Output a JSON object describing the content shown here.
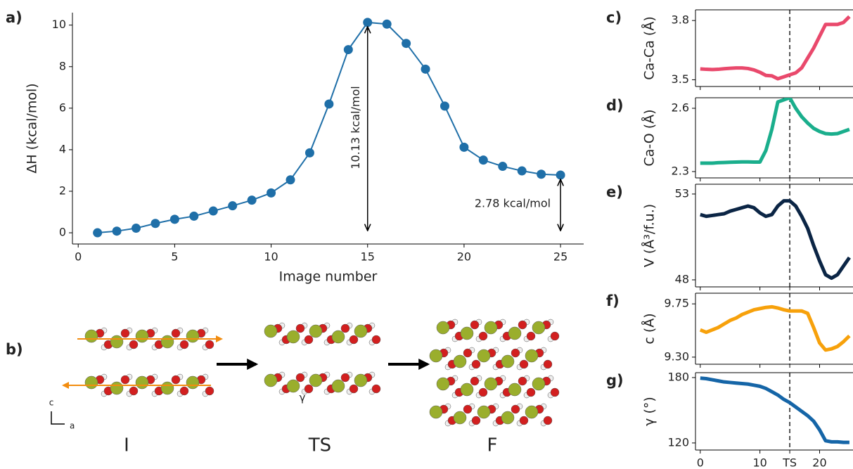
{
  "chart_data": [
    {
      "type": "line",
      "title": "a)",
      "xlabel": "Image number",
      "ylabel": "ΔH (kcal/mol)",
      "x": [
        1,
        2,
        3,
        4,
        5,
        6,
        7,
        8,
        9,
        10,
        11,
        12,
        13,
        14,
        15,
        16,
        17,
        18,
        19,
        20,
        21,
        22,
        23,
        24,
        25
      ],
      "series": [
        {
          "color": "#1f6fa8",
          "values": [
            0,
            0.08,
            0.22,
            0.45,
            0.65,
            0.8,
            1.05,
            1.3,
            1.57,
            1.92,
            2.55,
            3.85,
            6.2,
            8.82,
            10.13,
            10.05,
            9.12,
            7.88,
            6.1,
            4.12,
            3.5,
            3.2,
            2.98,
            2.82,
            2.78
          ]
        }
      ],
      "markers": true,
      "xlim": [
        -0.3,
        26.2
      ],
      "ylim": [
        -0.54,
        10.6
      ],
      "xticks": [
        0,
        5,
        10,
        15,
        20,
        25
      ],
      "yticks": [
        0,
        2,
        4,
        6,
        8,
        10
      ],
      "annotations": [
        {
          "text": "10.13 kcal/mol",
          "x": 15,
          "y0": 0,
          "y1": 10.13
        },
        {
          "text": "2.78 kcal/mol",
          "x": 25,
          "y0": 0,
          "y1": 2.78
        }
      ]
    },
    {
      "type": "line",
      "title": "c)",
      "ylabel": "Ca-Ca (Å)",
      "x": [
        0,
        1,
        2,
        3,
        4,
        5,
        6,
        7,
        8,
        9,
        10,
        11,
        12,
        13,
        14,
        15,
        16,
        17,
        18,
        19,
        20,
        21,
        22,
        23,
        24,
        25
      ],
      "series": [
        {
          "color": "#e9496c",
          "values": [
            3.555,
            3.553,
            3.552,
            3.553,
            3.556,
            3.558,
            3.56,
            3.56,
            3.557,
            3.55,
            3.538,
            3.522,
            3.52,
            3.505,
            3.515,
            3.525,
            3.535,
            3.56,
            3.61,
            3.66,
            3.72,
            3.78,
            3.78,
            3.78,
            3.79,
            3.82
          ]
        }
      ],
      "xlim": [
        -0.8,
        25.6
      ],
      "ylim": [
        3.466,
        3.854
      ],
      "yticks": [
        3.5,
        3.8
      ],
      "vline_x": 15
    },
    {
      "type": "line",
      "title": "d)",
      "ylabel": "Ca-O (Å)",
      "x": [
        0,
        1,
        2,
        3,
        4,
        5,
        6,
        7,
        8,
        9,
        10,
        11,
        12,
        13,
        14,
        15,
        16,
        17,
        18,
        19,
        20,
        21,
        22,
        23,
        24,
        25
      ],
      "series": [
        {
          "color": "#1aae8c",
          "values": [
            2.34,
            2.34,
            2.34,
            2.342,
            2.343,
            2.344,
            2.345,
            2.346,
            2.346,
            2.345,
            2.345,
            2.4,
            2.5,
            2.63,
            2.64,
            2.65,
            2.6,
            2.56,
            2.53,
            2.505,
            2.49,
            2.48,
            2.478,
            2.48,
            2.49,
            2.5
          ]
        }
      ],
      "xlim": [
        -0.8,
        25.6
      ],
      "ylim": [
        2.27,
        2.65
      ],
      "yticks": [
        2.3,
        2.6
      ],
      "vline_x": 15
    },
    {
      "type": "line",
      "title": "e)",
      "ylabel": "V (Å³/f.u.)",
      "x": [
        0,
        1,
        2,
        3,
        4,
        5,
        6,
        7,
        8,
        9,
        10,
        11,
        12,
        13,
        14,
        15,
        16,
        17,
        18,
        19,
        20,
        21,
        22,
        23,
        24,
        25
      ],
      "series": [
        {
          "color": "#0b2545",
          "values": [
            51.8,
            51.7,
            51.75,
            51.8,
            51.85,
            52,
            52.1,
            52.2,
            52.3,
            52.2,
            51.9,
            51.7,
            51.8,
            52.3,
            52.6,
            52.6,
            52.3,
            51.7,
            51,
            50,
            49.1,
            48.3,
            48.1,
            48.3,
            48.8,
            49.3
          ]
        }
      ],
      "xlim": [
        -0.8,
        25.6
      ],
      "ylim": [
        47.59,
        53.57
      ],
      "yticks": [
        48,
        53
      ],
      "vline_x": 15
    },
    {
      "type": "line",
      "title": "f)",
      "ylabel": "c (Å)",
      "x": [
        0,
        1,
        2,
        3,
        4,
        5,
        6,
        7,
        8,
        9,
        10,
        11,
        12,
        13,
        14,
        15,
        16,
        17,
        18,
        19,
        20,
        21,
        22,
        23,
        24,
        25
      ],
      "series": [
        {
          "color": "#f7a10b",
          "values": [
            9.53,
            9.51,
            9.53,
            9.55,
            9.58,
            9.61,
            9.63,
            9.66,
            9.68,
            9.7,
            9.71,
            9.72,
            9.725,
            9.715,
            9.7,
            9.69,
            9.69,
            9.69,
            9.67,
            9.55,
            9.42,
            9.36,
            9.37,
            9.39,
            9.43,
            9.48
          ]
        }
      ],
      "xlim": [
        -0.8,
        25.6
      ],
      "ylim": [
        9.24,
        9.84
      ],
      "yticks": [
        {
          "value": 9.3,
          "label": "9.30"
        },
        9.75
      ],
      "vline_x": 15
    },
    {
      "type": "line",
      "title": "g)",
      "ylabel": "γ (°)",
      "x": [
        0,
        1,
        2,
        3,
        4,
        5,
        6,
        7,
        8,
        9,
        10,
        11,
        12,
        13,
        14,
        15,
        16,
        17,
        18,
        19,
        20,
        21,
        22,
        23,
        24,
        25
      ],
      "series": [
        {
          "color": "#1565a7",
          "values": [
            179.5,
            179,
            178,
            177,
            176,
            175.5,
            175,
            174.5,
            174,
            173,
            172,
            170,
            167,
            164,
            160,
            157,
            153,
            149,
            145,
            140,
            132,
            122,
            121,
            121,
            120.5,
            120.5
          ]
        }
      ],
      "xlim": [
        -0.8,
        25.6
      ],
      "ylim": [
        113.5,
        184.5
      ],
      "yticks": [
        120,
        180
      ],
      "vline_x": 15,
      "xticks": [
        0,
        10,
        {
          "value": 15,
          "label": "TS"
        },
        20
      ]
    }
  ],
  "diagram": {
    "label": "b)",
    "states": [
      "I",
      "TS",
      "F"
    ],
    "axes": [
      "c",
      "a"
    ],
    "angle": "γ"
  }
}
